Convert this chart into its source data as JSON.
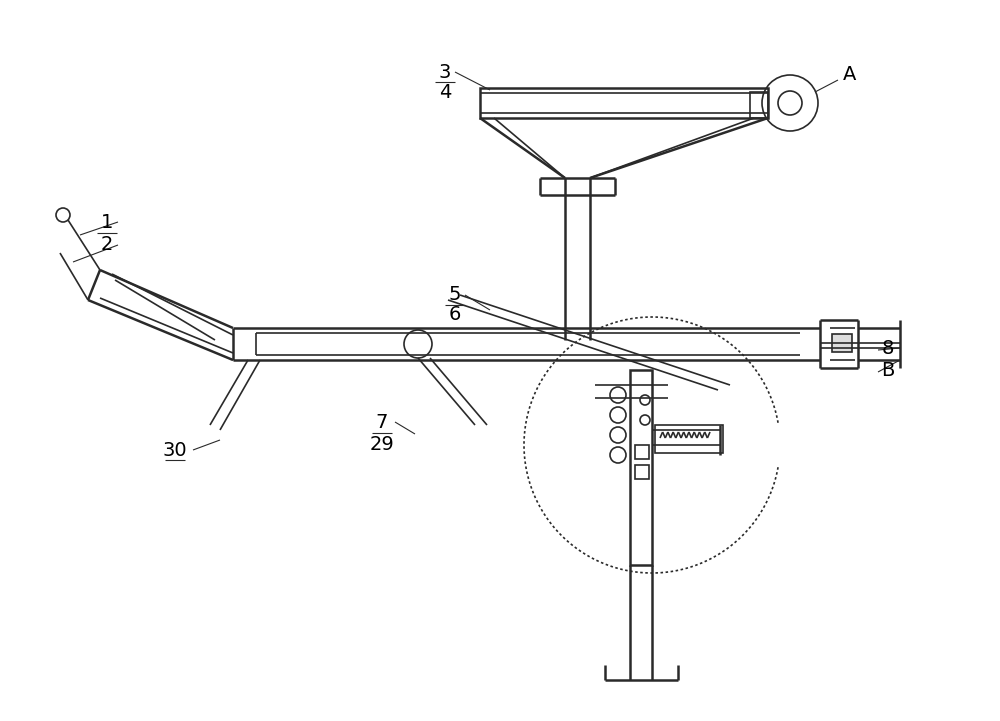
{
  "bg_color": "#ffffff",
  "line_color": "#2a2a2a",
  "lw": 1.2,
  "lw2": 1.8,
  "figsize": [
    10.0,
    7.21
  ]
}
